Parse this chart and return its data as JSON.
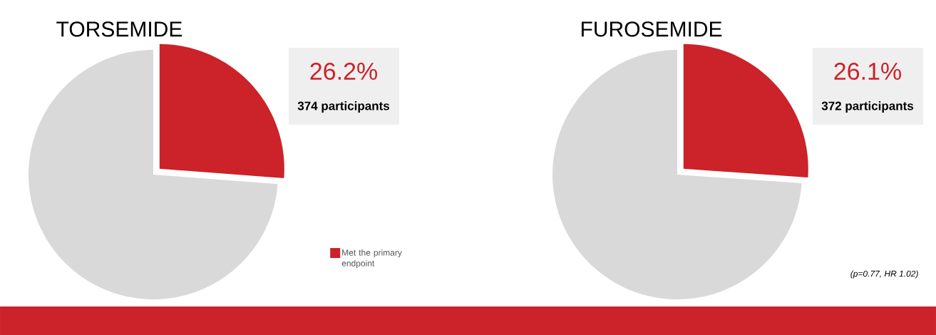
{
  "chart_data": [
    {
      "type": "pie",
      "title": "TORSEMIDE",
      "categories": [
        "Met the primary endpoint",
        null
      ],
      "values": [
        26.2,
        73.8
      ],
      "colors": [
        "#cc2229",
        "#d9d9d9"
      ],
      "value_labels": [
        "26.2%",
        null
      ],
      "annotations": [
        "374 participants"
      ],
      "legend": "right"
    },
    {
      "type": "pie",
      "title": "FUROSEMIDE",
      "categories": [
        null,
        null
      ],
      "values": [
        26.1,
        73.9
      ],
      "colors": [
        "#cc2229",
        "#d9d9d9"
      ],
      "value_labels": [
        "26.1%",
        null
      ],
      "annotations": [
        "372 participants",
        "(p=0.77, HR 1.02)"
      ]
    }
  ]
}
